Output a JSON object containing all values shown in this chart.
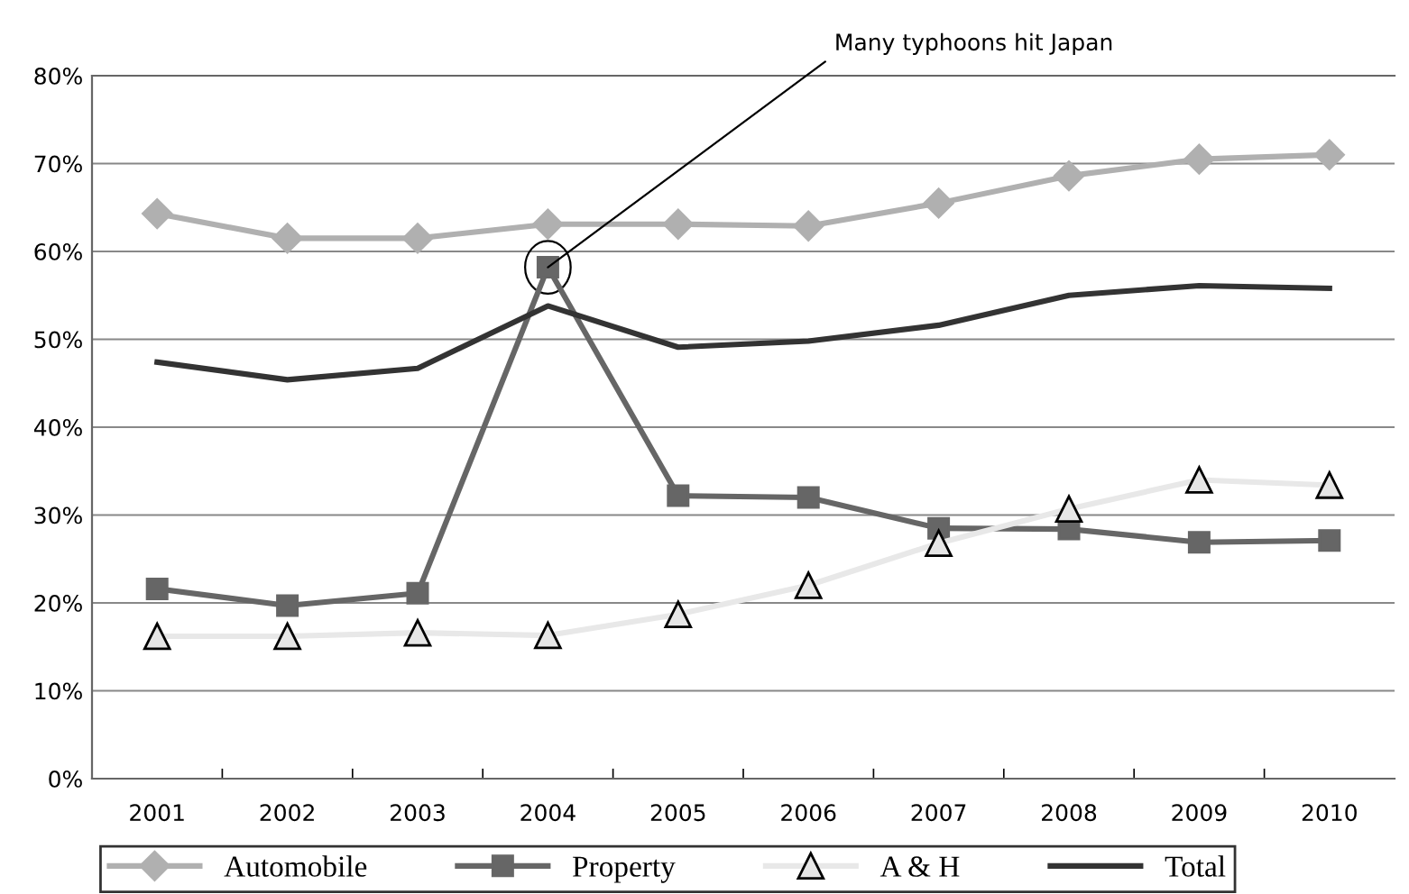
{
  "chart_data": {
    "type": "line",
    "categories": [
      "2001",
      "2002",
      "2003",
      "2004",
      "2005",
      "2006",
      "2007",
      "2008",
      "2009",
      "2010"
    ],
    "series": [
      {
        "name": "Automobile",
        "color": "#b0b0b0",
        "marker": "diamond",
        "values": [
          64.3,
          61.5,
          61.5,
          63.1,
          63.1,
          62.9,
          65.5,
          68.6,
          70.5,
          71.0
        ]
      },
      {
        "name": "Property",
        "color": "#666666",
        "marker": "square",
        "values": [
          21.6,
          19.7,
          21.1,
          58.2,
          32.2,
          32.0,
          28.5,
          28.4,
          26.9,
          27.1
        ]
      },
      {
        "name": "A & H",
        "color": "#e8e8e8",
        "marker": "triangle",
        "values": [
          16.2,
          16.2,
          16.6,
          16.3,
          18.7,
          22.0,
          26.8,
          30.7,
          34.0,
          33.4
        ]
      },
      {
        "name": "Total",
        "color": "#333333",
        "marker": "none",
        "values": [
          47.4,
          45.4,
          46.7,
          53.8,
          49.1,
          49.8,
          51.6,
          55.0,
          56.1,
          55.8
        ]
      }
    ],
    "ylim": [
      0,
      80
    ],
    "yticks": [
      {
        "value": 0,
        "label": "0%"
      },
      {
        "value": 10,
        "label": "10%"
      },
      {
        "value": 20,
        "label": "20%"
      },
      {
        "value": 30,
        "label": "30%"
      },
      {
        "value": 40,
        "label": "40%"
      },
      {
        "value": 50,
        "label": "50%"
      },
      {
        "value": 60,
        "label": "60%"
      },
      {
        "value": 70,
        "label": "70%"
      },
      {
        "value": 80,
        "label": "80%"
      }
    ],
    "grid": "y",
    "legend": "bottom",
    "line_style": "solid",
    "annotations": [
      {
        "text": "Many typhoons hit Japan",
        "x": "2004",
        "y": 58.2
      }
    ]
  }
}
